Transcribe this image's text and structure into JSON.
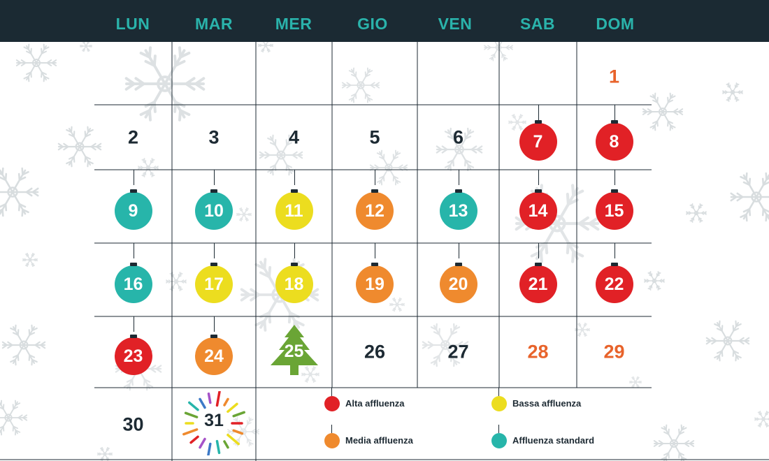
{
  "weekdays": [
    "LUN",
    "MAR",
    "MER",
    "GIO",
    "VEN",
    "SAB",
    "DOM"
  ],
  "colors": {
    "header_bg": "#1b2a33",
    "weekday_text": "#2ab3ab",
    "text_dark": "#1d2a33",
    "weekend_text": "#e8632b",
    "grid_line": "#1d2a33",
    "snowflake": "#cfd5d8",
    "alta": "#e12126",
    "media": "#ef8a2e",
    "bassa": "#ecdd1f",
    "standard": "#27b5aa",
    "tree": "#6aa535"
  },
  "days": [
    {
      "day": "1",
      "row": 0,
      "col": 6,
      "style": "weekend"
    },
    {
      "day": "2",
      "row": 1,
      "col": 0,
      "style": "plain"
    },
    {
      "day": "3",
      "row": 1,
      "col": 1,
      "style": "plain"
    },
    {
      "day": "4",
      "row": 1,
      "col": 2,
      "style": "plain"
    },
    {
      "day": "5",
      "row": 1,
      "col": 3,
      "style": "plain"
    },
    {
      "day": "6",
      "row": 1,
      "col": 4,
      "style": "plain"
    },
    {
      "day": "7",
      "row": 1,
      "col": 5,
      "style": "ball",
      "level": "alta"
    },
    {
      "day": "8",
      "row": 1,
      "col": 6,
      "style": "ball",
      "level": "alta"
    },
    {
      "day": "9",
      "row": 2,
      "col": 0,
      "style": "ball",
      "level": "standard"
    },
    {
      "day": "10",
      "row": 2,
      "col": 1,
      "style": "ball",
      "level": "standard"
    },
    {
      "day": "11",
      "row": 2,
      "col": 2,
      "style": "ball",
      "level": "bassa"
    },
    {
      "day": "12",
      "row": 2,
      "col": 3,
      "style": "ball",
      "level": "media"
    },
    {
      "day": "13",
      "row": 2,
      "col": 4,
      "style": "ball",
      "level": "standard"
    },
    {
      "day": "14",
      "row": 2,
      "col": 5,
      "style": "ball",
      "level": "alta"
    },
    {
      "day": "15",
      "row": 2,
      "col": 6,
      "style": "ball",
      "level": "alta"
    },
    {
      "day": "16",
      "row": 3,
      "col": 0,
      "style": "ball",
      "level": "standard"
    },
    {
      "day": "17",
      "row": 3,
      "col": 1,
      "style": "ball",
      "level": "bassa"
    },
    {
      "day": "18",
      "row": 3,
      "col": 2,
      "style": "ball",
      "level": "bassa"
    },
    {
      "day": "19",
      "row": 3,
      "col": 3,
      "style": "ball",
      "level": "media"
    },
    {
      "day": "20",
      "row": 3,
      "col": 4,
      "style": "ball",
      "level": "media"
    },
    {
      "day": "21",
      "row": 3,
      "col": 5,
      "style": "ball",
      "level": "alta"
    },
    {
      "day": "22",
      "row": 3,
      "col": 6,
      "style": "ball",
      "level": "alta"
    },
    {
      "day": "23",
      "row": 4,
      "col": 0,
      "style": "ball",
      "level": "alta"
    },
    {
      "day": "24",
      "row": 4,
      "col": 1,
      "style": "ball",
      "level": "media"
    },
    {
      "day": "25",
      "row": 4,
      "col": 2,
      "style": "tree"
    },
    {
      "day": "26",
      "row": 4,
      "col": 3,
      "style": "plain"
    },
    {
      "day": "27",
      "row": 4,
      "col": 4,
      "style": "plain"
    },
    {
      "day": "28",
      "row": 4,
      "col": 5,
      "style": "weekend"
    },
    {
      "day": "29",
      "row": 4,
      "col": 6,
      "style": "weekend"
    },
    {
      "day": "30",
      "row": 5,
      "col": 0,
      "style": "plain"
    },
    {
      "day": "31",
      "row": 5,
      "col": 1,
      "style": "fireworks"
    }
  ],
  "legend": [
    {
      "label": "Alta affluenza",
      "level": "alta"
    },
    {
      "label": "Bassa affluenza",
      "level": "bassa"
    },
    {
      "label": "Media affluenza",
      "level": "media"
    },
    {
      "label": "Affluenza standard",
      "level": "standard"
    }
  ]
}
